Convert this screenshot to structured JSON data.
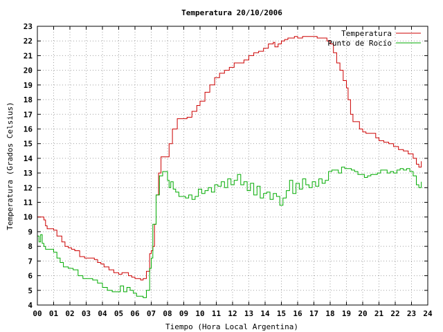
{
  "chart_data": {
    "type": "line",
    "title": "Temperatura 20/10/2006",
    "xlabel": "Tiempo (Hora Local Argentina)",
    "ylabel": "Temperatura (Grados Celsius)",
    "xlim": [
      0,
      24
    ],
    "ylim": [
      4,
      23
    ],
    "xticks": [
      "00",
      "01",
      "02",
      "03",
      "04",
      "05",
      "06",
      "07",
      "08",
      "09",
      "10",
      "11",
      "12",
      "13",
      "14",
      "15",
      "16",
      "17",
      "18",
      "19",
      "20",
      "21",
      "22",
      "23",
      "24"
    ],
    "yticks": [
      4,
      5,
      6,
      7,
      8,
      9,
      10,
      11,
      12,
      13,
      14,
      15,
      16,
      17,
      18,
      19,
      20,
      21,
      22,
      23
    ],
    "grid": true,
    "legend": "top-right",
    "series": [
      {
        "name": "Temperatura",
        "color": "#cc0000",
        "x": [
          0.0,
          0.25,
          0.4,
          0.5,
          0.6,
          0.8,
          1.0,
          1.2,
          1.5,
          1.7,
          1.9,
          2.1,
          2.3,
          2.6,
          2.9,
          3.2,
          3.5,
          3.7,
          3.9,
          4.1,
          4.4,
          4.7,
          5.0,
          5.2,
          5.4,
          5.6,
          5.8,
          6.0,
          6.2,
          6.35,
          6.5,
          6.7,
          6.9,
          7.0,
          7.1,
          7.2,
          7.3,
          7.45,
          7.6,
          7.8,
          7.95,
          8.1,
          8.3,
          8.6,
          8.9,
          9.2,
          9.5,
          9.8,
          10.0,
          10.3,
          10.6,
          10.9,
          11.2,
          11.5,
          11.8,
          12.1,
          12.4,
          12.7,
          13.0,
          13.3,
          13.6,
          13.9,
          14.2,
          14.5,
          14.6,
          14.8,
          15.0,
          15.2,
          15.4,
          15.6,
          15.8,
          16.0,
          16.3,
          16.6,
          16.9,
          17.2,
          17.5,
          17.8,
          18.0,
          18.2,
          18.4,
          18.6,
          18.8,
          19.0,
          19.1,
          19.25,
          19.4,
          19.6,
          19.8,
          20.0,
          20.2,
          20.5,
          20.8,
          21.0,
          21.3,
          21.6,
          21.9,
          22.2,
          22.5,
          22.8,
          23.1,
          23.3,
          23.45,
          23.6
        ],
        "values": [
          10.0,
          10.0,
          9.8,
          9.4,
          9.2,
          9.2,
          9.1,
          8.7,
          8.3,
          8.0,
          7.9,
          7.8,
          7.7,
          7.3,
          7.2,
          7.2,
          7.1,
          6.9,
          6.8,
          6.6,
          6.4,
          6.2,
          6.1,
          6.2,
          6.2,
          6.0,
          5.9,
          5.8,
          5.8,
          5.7,
          5.8,
          6.3,
          7.5,
          7.7,
          8.0,
          9.5,
          11.5,
          13.0,
          14.1,
          14.1,
          14.1,
          15.0,
          16.0,
          16.7,
          16.7,
          16.8,
          17.2,
          17.6,
          17.9,
          18.5,
          19.0,
          19.5,
          19.8,
          20.0,
          20.2,
          20.5,
          20.5,
          20.7,
          21.0,
          21.2,
          21.3,
          21.5,
          21.8,
          21.9,
          21.6,
          21.8,
          22.0,
          22.1,
          22.2,
          22.2,
          22.3,
          22.2,
          22.3,
          22.3,
          22.3,
          22.2,
          22.2,
          22.0,
          21.8,
          21.2,
          20.5,
          20.0,
          19.3,
          18.8,
          18.0,
          17.0,
          16.5,
          16.5,
          16.0,
          15.8,
          15.7,
          15.7,
          15.4,
          15.2,
          15.1,
          15.0,
          14.8,
          14.6,
          14.5,
          14.3,
          14.0,
          13.6,
          13.4,
          13.8
        ]
      },
      {
        "name": "Punto de Rocío",
        "color": "#00aa00",
        "x": [
          0.0,
          0.1,
          0.2,
          0.3,
          0.4,
          0.5,
          0.7,
          1.0,
          1.2,
          1.4,
          1.6,
          1.9,
          2.2,
          2.5,
          2.8,
          3.1,
          3.4,
          3.7,
          4.0,
          4.3,
          4.6,
          4.9,
          5.1,
          5.3,
          5.5,
          5.7,
          5.9,
          6.1,
          6.3,
          6.5,
          6.7,
          6.9,
          7.0,
          7.1,
          7.3,
          7.5,
          7.7,
          7.9,
          8.0,
          8.1,
          8.2,
          8.35,
          8.5,
          8.7,
          8.9,
          9.1,
          9.3,
          9.5,
          9.7,
          9.9,
          10.1,
          10.3,
          10.5,
          10.7,
          10.9,
          11.1,
          11.3,
          11.5,
          11.7,
          11.9,
          12.1,
          12.3,
          12.5,
          12.7,
          12.9,
          13.1,
          13.3,
          13.5,
          13.7,
          13.9,
          14.1,
          14.3,
          14.5,
          14.7,
          14.9,
          15.1,
          15.3,
          15.5,
          15.7,
          15.9,
          16.1,
          16.3,
          16.5,
          16.7,
          16.9,
          17.1,
          17.3,
          17.5,
          17.7,
          17.9,
          18.1,
          18.3,
          18.5,
          18.7,
          18.9,
          19.1,
          19.3,
          19.5,
          19.7,
          19.9,
          20.1,
          20.3,
          20.5,
          20.7,
          20.9,
          21.1,
          21.3,
          21.5,
          21.7,
          21.9,
          22.1,
          22.3,
          22.5,
          22.7,
          22.9,
          23.1,
          23.3,
          23.45,
          23.6
        ],
        "values": [
          8.7,
          8.3,
          8.8,
          8.2,
          8.0,
          7.8,
          7.8,
          7.6,
          7.2,
          6.9,
          6.6,
          6.5,
          6.4,
          6.0,
          5.8,
          5.8,
          5.7,
          5.5,
          5.2,
          5.0,
          4.9,
          4.9,
          5.3,
          4.9,
          5.2,
          5.0,
          4.8,
          4.6,
          4.6,
          4.5,
          5.0,
          6.5,
          7.2,
          9.5,
          11.5,
          12.8,
          13.1,
          13.1,
          12.5,
          12.0,
          12.4,
          11.9,
          11.7,
          11.4,
          11.4,
          11.3,
          11.5,
          11.2,
          11.4,
          11.9,
          11.6,
          11.8,
          12.0,
          11.7,
          12.2,
          12.1,
          12.4,
          12.0,
          12.6,
          12.2,
          12.5,
          12.9,
          12.2,
          12.4,
          11.8,
          12.3,
          11.5,
          12.1,
          11.3,
          11.6,
          11.7,
          11.2,
          11.6,
          11.4,
          10.8,
          11.3,
          11.8,
          12.5,
          11.6,
          12.3,
          11.9,
          12.6,
          12.2,
          12.0,
          12.4,
          12.1,
          12.6,
          12.3,
          12.5,
          13.1,
          13.2,
          13.2,
          13.0,
          13.4,
          13.3,
          13.3,
          13.2,
          13.1,
          12.9,
          12.9,
          12.7,
          12.8,
          12.9,
          12.9,
          13.0,
          13.2,
          13.2,
          13.0,
          13.1,
          13.0,
          13.2,
          13.3,
          13.2,
          13.3,
          13.1,
          12.8,
          12.2,
          12.0,
          12.4
        ]
      }
    ]
  }
}
